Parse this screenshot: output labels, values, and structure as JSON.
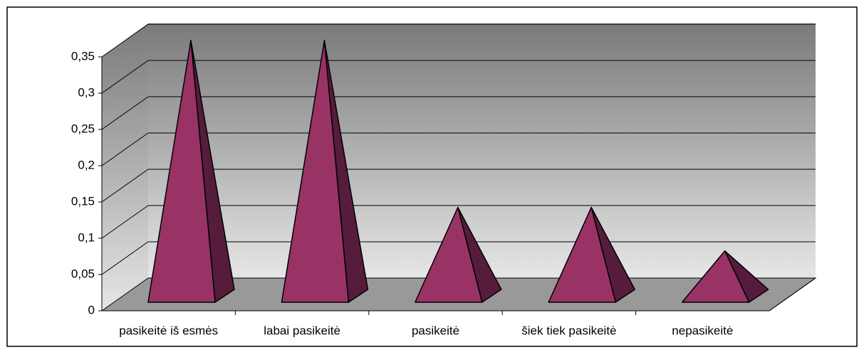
{
  "chart_data": {
    "type": "pyramid",
    "categories": [
      "pasikeitė iš esmės",
      "labai pasikeitė",
      "pasikeitė",
      "šiek tiek pasikeitė",
      "nepasikeitė"
    ],
    "values": [
      0.35,
      0.35,
      0.12,
      0.12,
      0.06
    ],
    "color": "#993366",
    "ylim": [
      0,
      0.35
    ],
    "yticks": [
      0,
      {
        "value": 0.05,
        "label": "0,05"
      },
      {
        "value": 0.1,
        "label": "0,1"
      },
      {
        "value": 0.15,
        "label": "0,15"
      },
      {
        "value": 0.2,
        "label": "0,2"
      },
      {
        "value": 0.25,
        "label": "0,25"
      },
      {
        "value": 0.3,
        "label": "0,3"
      },
      {
        "value": 0.35,
        "label": "0,35"
      }
    ],
    "grid": true
  }
}
